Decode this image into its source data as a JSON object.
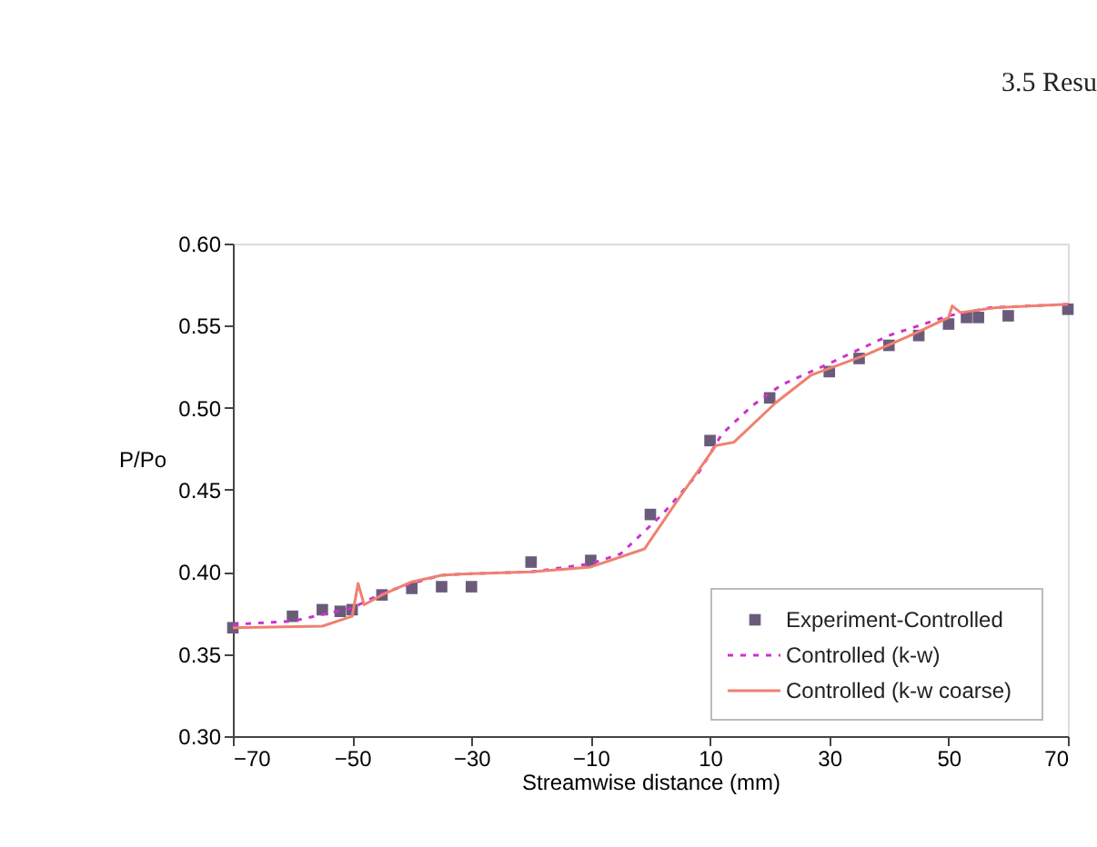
{
  "chart_data": {
    "type": "line",
    "xlabel": "Streamwise distance (mm)",
    "ylabel": "P/Po",
    "annotations": [
      "3.5 Resu"
    ],
    "xlim": [
      -70,
      70
    ],
    "xticks": [
      -70,
      -50,
      -30,
      -10,
      10,
      30,
      50,
      70
    ],
    "ylim": [
      0.3,
      0.6
    ],
    "yticks": [
      {
        "value": 0.3,
        "label": "0.30"
      },
      {
        "value": 0.35,
        "label": "0.35"
      },
      {
        "value": 0.4,
        "label": "0.40"
      },
      {
        "value": 0.45,
        "label": "0.45"
      },
      {
        "value": 0.5,
        "label": "0.50"
      },
      {
        "value": 0.55,
        "label": "0.55"
      },
      {
        "value": 0.6,
        "label": "0.60"
      }
    ],
    "grid": false,
    "legend": "bottom right",
    "series": [
      {
        "name": "Experiment-Controlled",
        "type": "scatter",
        "marker": "square",
        "color": "#6b5b7b",
        "x": [
          -70,
          -60,
          -55,
          -52,
          -50,
          -45,
          -40,
          -35,
          -30,
          -20,
          -10,
          0,
          10,
          20,
          30,
          35,
          40,
          45,
          50,
          53,
          55,
          60,
          70
        ],
        "values": [
          0.366,
          0.373,
          0.377,
          0.376,
          0.377,
          0.386,
          0.39,
          0.391,
          0.391,
          0.406,
          0.407,
          0.435,
          0.48,
          0.506,
          0.522,
          0.53,
          0.538,
          0.544,
          0.551,
          0.555,
          0.555,
          0.556,
          0.56
        ]
      },
      {
        "name": "Controlled (k-w)",
        "line_style": "dashed",
        "color": "#cc33cc",
        "x": [
          -70,
          -60,
          -50,
          -45,
          -40,
          -35,
          -30,
          -20,
          -10,
          -5,
          2,
          8,
          12,
          17,
          22,
          30,
          40,
          50,
          57,
          70
        ],
        "values": [
          0.368,
          0.37,
          0.378,
          0.387,
          0.393,
          0.398,
          0.399,
          0.4,
          0.405,
          0.411,
          0.435,
          0.46,
          0.484,
          0.501,
          0.514,
          0.527,
          0.544,
          0.556,
          0.561,
          0.563
        ]
      },
      {
        "name": "Controlled (k-w coarse)",
        "line_style": "solid",
        "color": "#f08070",
        "x": [
          -70,
          -55,
          -50,
          -49,
          -48,
          -45,
          -40,
          -35,
          -30,
          -20,
          -10,
          -1,
          5,
          11,
          14,
          21,
          27,
          36,
          43,
          50,
          50.6,
          52,
          58,
          70
        ],
        "values": [
          0.366,
          0.367,
          0.373,
          0.393,
          0.38,
          0.386,
          0.394,
          0.398,
          0.399,
          0.4,
          0.403,
          0.414,
          0.446,
          0.477,
          0.479,
          0.503,
          0.52,
          0.532,
          0.543,
          0.555,
          0.562,
          0.558,
          0.561,
          0.563
        ]
      }
    ]
  }
}
